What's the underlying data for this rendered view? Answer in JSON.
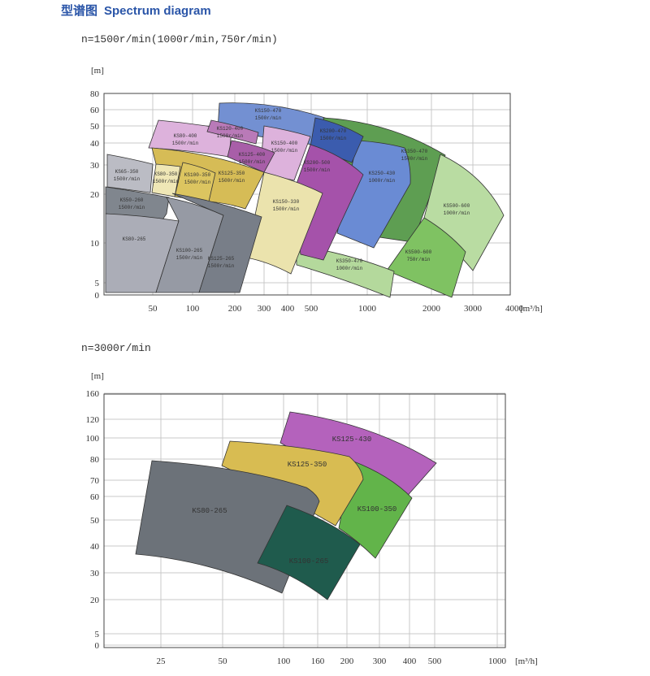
{
  "header": {
    "title_cn": "型谱图",
    "title_en": "Spectrum diagram"
  },
  "chart_data": [
    {
      "type": "area",
      "subtitle": "n=1500r/min(1000r/min,750r/min)",
      "ylabel": "[m]",
      "xlabel": "[m³/h]",
      "x_scale": "log",
      "y_scale": "log",
      "grid": true,
      "x_ticks": [
        "50",
        "100",
        "200",
        "300",
        "400",
        "500",
        "1000",
        "2000",
        "3000",
        "4000"
      ],
      "y_ticks": [
        "80",
        "60",
        "50",
        "40",
        "30",
        "20",
        "10",
        "5",
        "0"
      ],
      "regions": [
        {
          "model": "KS150-470",
          "speed": "1500r/min",
          "color": "#7390d2"
        },
        {
          "model": "KS350-470",
          "speed": "1500r/min",
          "color": "#5e9e52"
        },
        {
          "model": "KS500-600",
          "speed": "1000r/min",
          "color": "#b9dca2"
        },
        {
          "model": "KS500-600",
          "speed": "750r/min",
          "color": "#7fc262"
        },
        {
          "model": "KS350-470",
          "speed": "1000r/min",
          "color": "#b4d99c"
        },
        {
          "model": "KS250-430",
          "speed": "1000r/min",
          "color": "#6a8bd4"
        },
        {
          "model": "KS200-470",
          "speed": "1500r/min",
          "color": "#3b5cae"
        },
        {
          "model": "KS200-500",
          "speed": "1500r/min",
          "color": "#a552aa"
        },
        {
          "model": "KS150-400",
          "speed": "1500r/min",
          "color": "#ddb2dc"
        },
        {
          "model": "KS80-400",
          "speed": "1500r/min",
          "color": "#ddb2dc"
        },
        {
          "model": "KS120-400",
          "speed": "1500r/min",
          "color": "#b97ab8"
        },
        {
          "model": "KS125-400",
          "speed": "1500r/min",
          "color": "#a85ea8"
        },
        {
          "model": "KS125-350",
          "speed": "1500r/min",
          "color": "#d6bc56"
        },
        {
          "model": "KS150-330",
          "speed": "1500r/min",
          "color": "#ebe3ad"
        },
        {
          "model": "KS80-350",
          "speed": "1500r/min",
          "color": "#efe7b6"
        },
        {
          "model": "KS100-350",
          "speed": "1500r/min",
          "color": "#dcc560"
        },
        {
          "model": "KS65-350",
          "speed": "1500r/min",
          "color": "#bbbcc4"
        },
        {
          "model": "KS50-260",
          "speed": "1500r/min",
          "color": "#80868e"
        },
        {
          "model": "KS80-265",
          "speed": "",
          "color": "#abadb7"
        },
        {
          "model": "KS100-265",
          "speed": "1500r/min",
          "color": "#969aa4"
        },
        {
          "model": "KS125-265",
          "speed": "1500r/min",
          "color": "#787e88"
        }
      ]
    },
    {
      "type": "area",
      "subtitle": "n=3000r/min",
      "ylabel": "[m]",
      "xlabel": "[m³/h]",
      "x_scale": "log",
      "y_scale": "log",
      "grid": true,
      "x_ticks": [
        "25",
        "50",
        "100",
        "160",
        "200",
        "300",
        "400",
        "500",
        "1000"
      ],
      "y_ticks": [
        "160",
        "120",
        "100",
        "80",
        "70",
        "60",
        "50",
        "40",
        "30",
        "20",
        "5",
        "0"
      ],
      "regions": [
        {
          "model": "KS125-430",
          "speed": "",
          "color": "#b462bc"
        },
        {
          "model": "KS125-350",
          "speed": "",
          "color": "#62b44a"
        },
        {
          "model": "KS100-350",
          "speed": "",
          "color": "#d8bc52"
        },
        {
          "model": "KS80-265",
          "speed": "",
          "color": "#6c7279"
        },
        {
          "model": "KS100-265",
          "speed": "",
          "color": "#1f5b4d"
        }
      ]
    }
  ]
}
